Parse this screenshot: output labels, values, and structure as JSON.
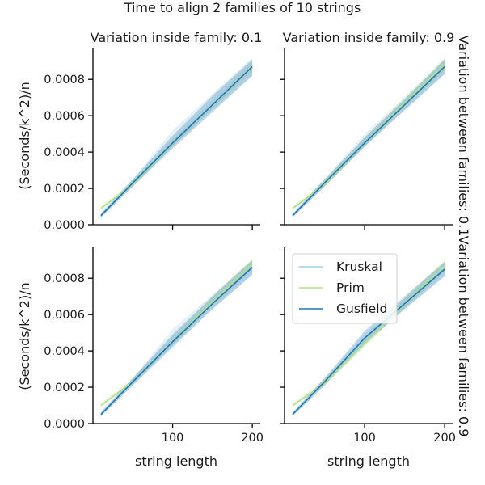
{
  "chart_data": {
    "type": "line",
    "title": "Time to align 2 families of 10 strings",
    "column_titles": [
      "Variation inside family: 0.1",
      "Variation inside family: 0.9"
    ],
    "row_titles": [
      "Variation between families: 0.1",
      "Variation between families: 0.9"
    ],
    "xlabel": "string length",
    "ylabel": "(Seconds/k^2)/n",
    "x_ticks": [
      100,
      200
    ],
    "y_ticks": [
      "0.0000",
      "0.0002",
      "0.0004",
      "0.0006",
      "0.0008"
    ],
    "xlim": [
      0,
      210
    ],
    "ylim": [
      0,
      0.00097
    ],
    "legend": {
      "placement": "upper-left of bottom-right panel",
      "entries": [
        "Kruskal",
        "Prim",
        "Gusfield"
      ]
    },
    "series_colors": {
      "Kruskal": "#a6cee3",
      "Prim": "#b2df8a",
      "Gusfield": "#1f78b4"
    },
    "panels": [
      {
        "col": 0,
        "row": 0,
        "series": [
          {
            "name": "Kruskal",
            "x": [
              10,
              50,
              100,
              150,
              200
            ],
            "y": [
              5e-05,
              0.00023,
              0.00047,
              0.00067,
              0.00087
            ],
            "ci_low": [
              4e-05,
              0.00021,
              0.00043,
              0.00063,
              0.00082
            ],
            "ci_high": [
              7e-05,
              0.00025,
              0.00052,
              0.00072,
              0.00092
            ]
          },
          {
            "name": "Prim",
            "x": [
              10,
              50,
              100,
              150,
              200
            ],
            "y": [
              9e-05,
              0.00022,
              0.00045,
              0.00066,
              0.00087
            ],
            "ci_low": [
              8e-05,
              0.00021,
              0.00043,
              0.00064,
              0.00084
            ],
            "ci_high": [
              0.0001,
              0.00024,
              0.00047,
              0.00068,
              0.0009
            ]
          },
          {
            "name": "Gusfield",
            "x": [
              10,
              50,
              100,
              150,
              200
            ],
            "y": [
              5e-05,
              0.00023,
              0.00045,
              0.00066,
              0.00087
            ],
            "ci_low": [
              4e-05,
              0.00021,
              0.00042,
              0.00062,
              0.00082
            ],
            "ci_high": [
              6e-05,
              0.00025,
              0.00049,
              0.00071,
              0.00091
            ]
          }
        ]
      },
      {
        "col": 1,
        "row": 0,
        "series": [
          {
            "name": "Kruskal",
            "x": [
              10,
              50,
              100,
              150,
              200
            ],
            "y": [
              5e-05,
              0.00023,
              0.00046,
              0.00066,
              0.00087
            ],
            "ci_low": [
              4e-05,
              0.00021,
              0.00043,
              0.00063,
              0.00083
            ],
            "ci_high": [
              6e-05,
              0.00025,
              0.0005,
              0.0007,
              0.00091
            ]
          },
          {
            "name": "Prim",
            "x": [
              10,
              50,
              100,
              150,
              200
            ],
            "y": [
              9e-05,
              0.00022,
              0.00045,
              0.00067,
              0.00088
            ],
            "ci_low": [
              8e-05,
              0.00021,
              0.00043,
              0.00065,
              0.00085
            ],
            "ci_high": [
              0.0001,
              0.00024,
              0.00048,
              0.0007,
              0.00092
            ]
          },
          {
            "name": "Gusfield",
            "x": [
              10,
              50,
              100,
              150,
              200
            ],
            "y": [
              5e-05,
              0.00023,
              0.00045,
              0.00066,
              0.00087
            ],
            "ci_low": [
              4e-05,
              0.00021,
              0.00043,
              0.00063,
              0.00083
            ],
            "ci_high": [
              6e-05,
              0.00025,
              0.00048,
              0.00069,
              0.00091
            ]
          }
        ]
      },
      {
        "col": 0,
        "row": 1,
        "series": [
          {
            "name": "Kruskal",
            "x": [
              10,
              50,
              100,
              150,
              200
            ],
            "y": [
              5e-05,
              0.00023,
              0.00047,
              0.00066,
              0.00086
            ],
            "ci_low": [
              4e-05,
              0.00021,
              0.00043,
              0.00063,
              0.00082
            ],
            "ci_high": [
              7e-05,
              0.00025,
              0.00052,
              0.00071,
              0.0009
            ]
          },
          {
            "name": "Prim",
            "x": [
              10,
              50,
              100,
              150,
              200
            ],
            "y": [
              0.0001,
              0.00023,
              0.00045,
              0.00067,
              0.00088
            ],
            "ci_low": [
              9e-05,
              0.00022,
              0.00043,
              0.00065,
              0.00085
            ],
            "ci_high": [
              0.00011,
              0.00025,
              0.00048,
              0.0007,
              0.00091
            ]
          },
          {
            "name": "Gusfield",
            "x": [
              10,
              50,
              100,
              150,
              200
            ],
            "y": [
              5e-05,
              0.00023,
              0.00045,
              0.00066,
              0.00086
            ],
            "ci_low": [
              4e-05,
              0.00021,
              0.00042,
              0.00063,
              0.00082
            ],
            "ci_high": [
              6e-05,
              0.00025,
              0.00049,
              0.0007,
              0.0009
            ]
          }
        ]
      },
      {
        "col": 1,
        "row": 1,
        "series": [
          {
            "name": "Kruskal",
            "x": [
              10,
              50,
              100,
              150,
              200
            ],
            "y": [
              5e-05,
              0.00023,
              0.00046,
              0.00066,
              0.00086
            ],
            "ci_low": [
              4e-05,
              0.00021,
              0.00043,
              0.00063,
              0.00082
            ],
            "ci_high": [
              6e-05,
              0.00025,
              0.00049,
              0.00069,
              0.00089
            ]
          },
          {
            "name": "Prim",
            "x": [
              10,
              50,
              100,
              150,
              200
            ],
            "y": [
              0.0001,
              0.00022,
              0.00044,
              0.00066,
              0.00087
            ],
            "ci_low": [
              9e-05,
              0.00021,
              0.00042,
              0.00064,
              0.00084
            ],
            "ci_high": [
              0.00011,
              0.00024,
              0.00047,
              0.00069,
              0.0009
            ]
          },
          {
            "name": "Gusfield",
            "x": [
              10,
              50,
              100,
              150,
              200
            ],
            "y": [
              5e-05,
              0.00023,
              0.00047,
              0.00066,
              0.00085
            ],
            "ci_low": [
              4e-05,
              0.00021,
              0.00044,
              0.00063,
              0.00081
            ],
            "ci_high": [
              6e-05,
              0.00025,
              0.00051,
              0.0007,
              0.00089
            ]
          }
        ]
      }
    ]
  }
}
